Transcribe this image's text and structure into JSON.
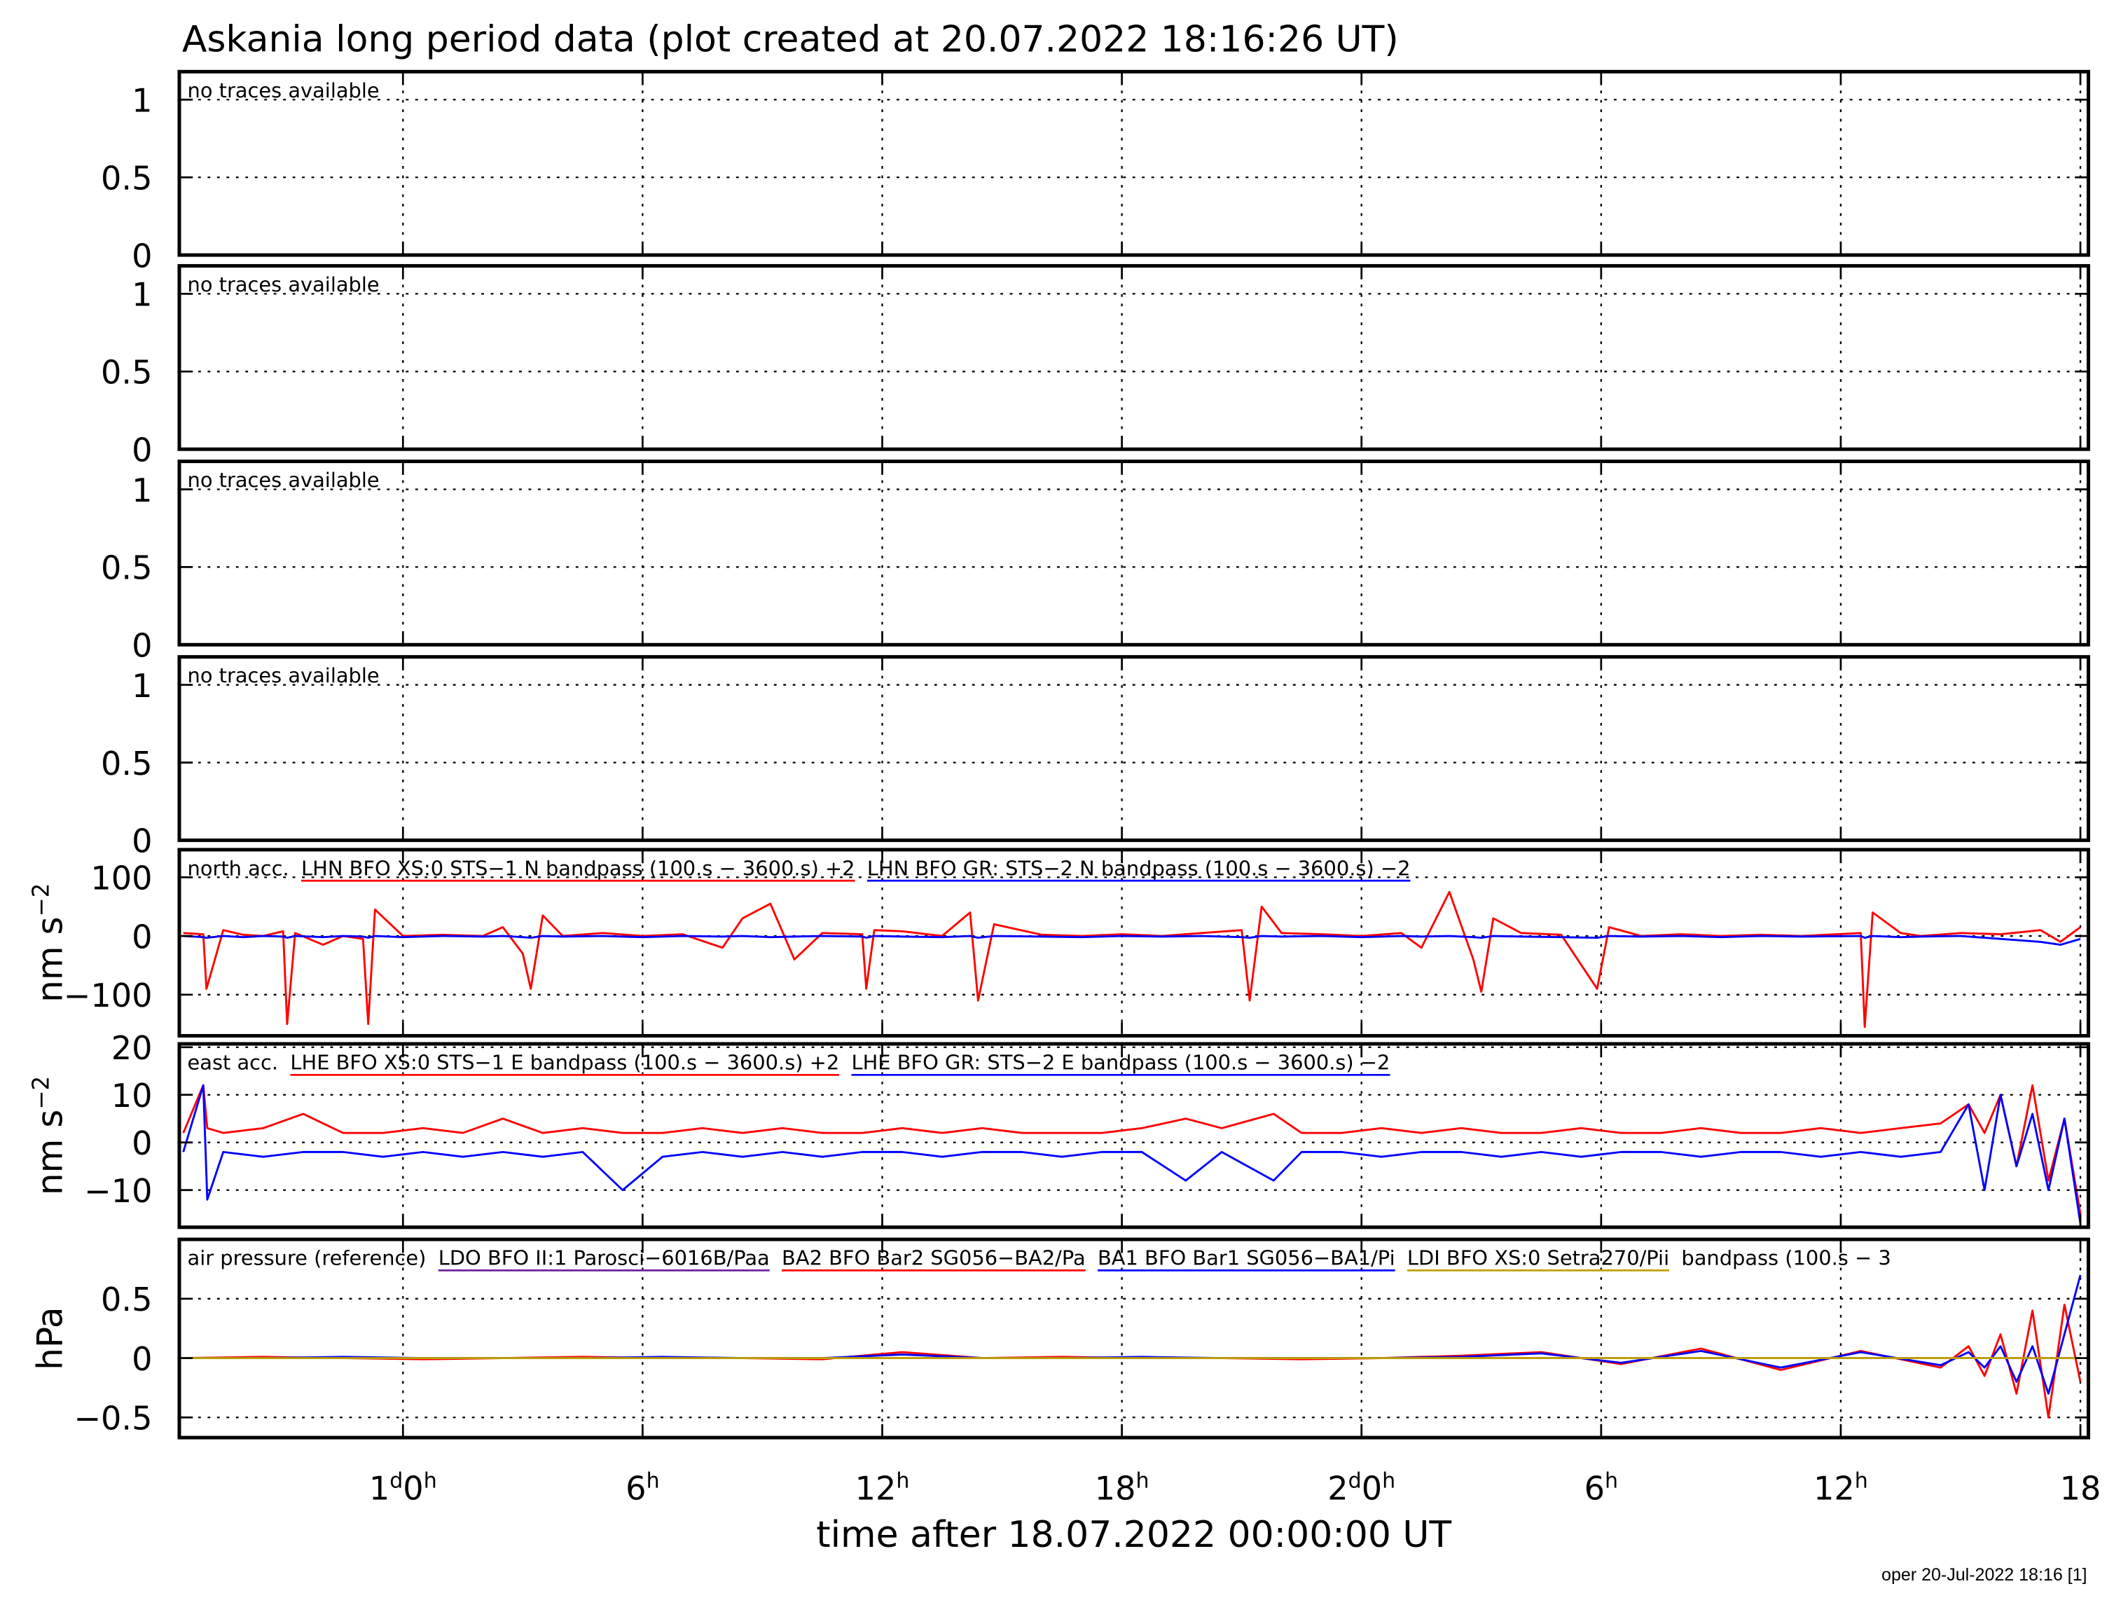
{
  "footer": "oper 20-Jul-2022 18:16 [1]",
  "chart_data": [
    {
      "type": "line",
      "title": "Askania long period data (plot created at 20.07.2022 18:16:26 UT)",
      "annotation": "no traces available",
      "ylim": [
        0,
        1.18
      ],
      "yticks": [
        0,
        0.5,
        1
      ],
      "grid": true,
      "series": []
    },
    {
      "type": "line",
      "annotation": "no traces available",
      "ylim": [
        0,
        1.18
      ],
      "yticks": [
        0,
        0.5,
        1
      ],
      "grid": true,
      "series": []
    },
    {
      "type": "line",
      "annotation": "no traces available",
      "ylim": [
        0,
        1.18
      ],
      "yticks": [
        0,
        0.5,
        1
      ],
      "grid": true,
      "series": []
    },
    {
      "type": "line",
      "annotation": "no traces available",
      "ylim": [
        0,
        1.18
      ],
      "yticks": [
        0,
        0.5,
        1
      ],
      "grid": true,
      "series": []
    },
    {
      "type": "line",
      "legend_prefix": "north acc.",
      "ylabel": "nm s−2",
      "ylim": [
        -170,
        147
      ],
      "yticks": [
        {
          "value": -100,
          "label": "−100"
        },
        0,
        100
      ],
      "grid": true,
      "x": [
        18.5,
        19.0,
        19.08,
        19.5,
        20,
        20.5,
        21.0,
        21.1,
        21.3,
        22,
        22.5,
        23.0,
        23.13,
        23.3,
        24,
        25,
        26,
        26.5,
        27.0,
        27.2,
        27.5,
        28,
        29,
        30,
        31,
        32,
        32.5,
        33.2,
        33.8,
        34.5,
        35.5,
        35.6,
        35.8,
        36.5,
        37.5,
        38.2,
        38.4,
        38.8,
        40,
        41,
        42,
        43,
        44,
        45.0,
        45.2,
        45.5,
        46,
        47,
        48,
        49,
        49.5,
        50.2,
        50.8,
        51.0,
        51.3,
        52,
        53,
        53.9,
        54.2,
        55,
        56,
        57,
        58,
        59,
        60.5,
        60.6,
        60.8,
        61.5,
        62,
        63,
        64,
        65,
        65.5,
        66
      ],
      "series": [
        {
          "name": "LHN BFO XS:0 STS−1 N bandpass (100.s − 3600.s) +2",
          "color": "#ff0000",
          "values": [
            5,
            3,
            -90,
            10,
            2,
            0,
            8,
            -150,
            5,
            -15,
            0,
            -5,
            -150,
            45,
            0,
            2,
            0,
            15,
            -30,
            -90,
            35,
            0,
            5,
            0,
            3,
            -20,
            30,
            55,
            -40,
            5,
            3,
            -90,
            10,
            8,
            0,
            40,
            -110,
            20,
            2,
            0,
            3,
            0,
            5,
            10,
            -110,
            50,
            5,
            3,
            0,
            5,
            -20,
            75,
            -40,
            -95,
            30,
            5,
            2,
            -90,
            15,
            0,
            3,
            0,
            2,
            0,
            5,
            -155,
            40,
            5,
            0,
            5,
            3,
            10,
            -10,
            15
          ]
        },
        {
          "name": "LHN BFO GR: STS−2 N bandpass (100.s − 3600.s) −2",
          "color": "#0000ff",
          "values": [
            0,
            -2,
            -3,
            0,
            -2,
            0,
            -1,
            -3,
            0,
            -2,
            0,
            -1,
            -3,
            0,
            -2,
            0,
            -1,
            0,
            -2,
            -3,
            0,
            -1,
            0,
            -2,
            0,
            -1,
            0,
            -2,
            -1,
            0,
            -1,
            -3,
            0,
            -1,
            -2,
            0,
            -3,
            0,
            -1,
            -2,
            0,
            -1,
            0,
            -2,
            -3,
            0,
            -1,
            0,
            -2,
            0,
            -1,
            0,
            -2,
            -3,
            0,
            -1,
            -2,
            -3,
            0,
            -1,
            0,
            -2,
            0,
            -1,
            0,
            -3,
            0,
            -2,
            -1,
            0,
            -5,
            -10,
            -15,
            -5
          ]
        }
      ]
    },
    {
      "type": "line",
      "legend_prefix": "east acc.",
      "ylabel": "nm s−2",
      "ylim": [
        -17.8,
        20.7
      ],
      "yticks": [
        {
          "value": -10,
          "label": "−10"
        },
        0,
        10,
        20
      ],
      "grid": true,
      "x": [
        18.5,
        19.0,
        19.1,
        19.5,
        20.5,
        21.5,
        22.5,
        23.5,
        24.5,
        25.5,
        26.5,
        27.5,
        28.5,
        29.5,
        30.5,
        31.5,
        32.5,
        33.5,
        34.5,
        35.5,
        36.5,
        37.5,
        38.5,
        39.5,
        40.5,
        41.5,
        42.5,
        43.6,
        44.5,
        45.8,
        46.5,
        47.5,
        48.5,
        49.5,
        50.5,
        51.5,
        52.5,
        53.5,
        54.5,
        55.5,
        56.5,
        57.5,
        58.5,
        59.5,
        60.5,
        61.5,
        62.5,
        63.2,
        63.6,
        64.0,
        64.4,
        64.8,
        65.2,
        65.6,
        66.0
      ],
      "series": [
        {
          "name": "LHE BFO XS:0 STS−1 E bandpass (100.s − 3600.s) +2",
          "color": "#ff0000",
          "values": [
            2,
            12,
            3,
            2,
            3,
            6,
            2,
            2,
            3,
            2,
            5,
            2,
            3,
            2,
            2,
            3,
            2,
            3,
            2,
            2,
            3,
            2,
            3,
            2,
            2,
            2,
            3,
            5,
            3,
            6,
            2,
            2,
            3,
            2,
            3,
            2,
            2,
            3,
            2,
            2,
            3,
            2,
            2,
            3,
            2,
            3,
            4,
            8,
            2,
            10,
            -5,
            12,
            -8,
            5,
            -15
          ]
        },
        {
          "name": "LHE BFO GR: STS−2 E bandpass (100.s − 3600.s) −2",
          "color": "#0000ff",
          "values": [
            -2,
            12,
            -12,
            -2,
            -3,
            -2,
            -2,
            -3,
            -2,
            -3,
            -2,
            -3,
            -2,
            -10,
            -3,
            -2,
            -3,
            -2,
            -3,
            -2,
            -2,
            -3,
            -2,
            -2,
            -3,
            -2,
            -2,
            -8,
            -2,
            -8,
            -2,
            -2,
            -3,
            -2,
            -2,
            -3,
            -2,
            -3,
            -2,
            -2,
            -3,
            -2,
            -2,
            -3,
            -2,
            -3,
            -2,
            8,
            -10,
            10,
            -5,
            6,
            -10,
            5,
            -17
          ]
        }
      ]
    },
    {
      "type": "line",
      "legend_prefix": "air pressure (reference)",
      "legend_suffix": "bandpass (100.s − 3",
      "ylabel": "hPa",
      "ylim": [
        -0.67,
        1.0
      ],
      "yticks": [
        {
          "value": -0.5,
          "label": "−0.5"
        },
        0,
        0.5
      ],
      "grid": true,
      "xlabel": "time after 18.07.2022 00:00:00 UT",
      "xlim": [
        18.4,
        66.2
      ],
      "xticks": [
        {
          "value": 24,
          "label": "1d0h"
        },
        {
          "value": 30,
          "label": "6h"
        },
        {
          "value": 36,
          "label": "12h"
        },
        {
          "value": 42,
          "label": "18h"
        },
        {
          "value": 48,
          "label": "2d0h"
        },
        {
          "value": 54,
          "label": "6h"
        },
        {
          "value": 60,
          "label": "12h"
        },
        {
          "value": 66,
          "label": "18"
        }
      ],
      "x": [
        18.5,
        20.5,
        22.5,
        24.5,
        26.5,
        28.5,
        30.5,
        32.5,
        34.5,
        36.5,
        38.5,
        40.5,
        42.5,
        44.5,
        46.5,
        48.5,
        50.5,
        52.5,
        54.5,
        56.5,
        58.5,
        60.5,
        62.5,
        63.2,
        63.6,
        64.0,
        64.4,
        64.8,
        65.2,
        65.6,
        66.0
      ],
      "series": [
        {
          "name": "LDO BFO II:1 Parosci−6016B/Paa",
          "color": "#7020a0",
          "values": [
            0,
            0,
            0,
            0,
            0,
            0,
            0,
            0,
            0,
            0,
            0,
            0,
            0,
            0,
            0,
            0,
            0,
            0,
            0,
            0,
            0,
            0,
            0,
            0,
            0,
            0,
            0,
            0,
            0,
            0,
            0
          ]
        },
        {
          "name": "BA2 BFO Bar2 SG056−BA2/Pa",
          "color": "#ff0000",
          "values": [
            0,
            0.01,
            0,
            -0.01,
            0,
            0.01,
            0,
            0,
            -0.01,
            0.05,
            0,
            0.01,
            0,
            0,
            -0.01,
            0,
            0.02,
            0.05,
            -0.05,
            0.08,
            -0.1,
            0.06,
            -0.08,
            0.1,
            -0.15,
            0.2,
            -0.3,
            0.4,
            -0.5,
            0.45,
            -0.2
          ]
        },
        {
          "name": "BA1 BFO Bar1 SG056−BA1/Pi",
          "color": "#0000ff",
          "values": [
            0,
            0,
            0.01,
            0,
            0,
            0,
            0.01,
            0,
            0,
            0.03,
            0,
            0,
            0.01,
            0,
            0,
            0,
            0.01,
            0.04,
            -0.04,
            0.06,
            -0.08,
            0.05,
            -0.06,
            0.05,
            -0.08,
            0.1,
            -0.2,
            0.1,
            -0.3,
            0.2,
            0.7
          ]
        },
        {
          "name": "LDI BFO XS:0 Setra270/Pii",
          "color": "#c0a000",
          "values": [
            0,
            0,
            0,
            0,
            0,
            0,
            0,
            0,
            0,
            0,
            0,
            0,
            0,
            0,
            0,
            0,
            0,
            0,
            0,
            0,
            0,
            0,
            0,
            0,
            0,
            0,
            0,
            0,
            0,
            0,
            0
          ]
        }
      ]
    }
  ]
}
